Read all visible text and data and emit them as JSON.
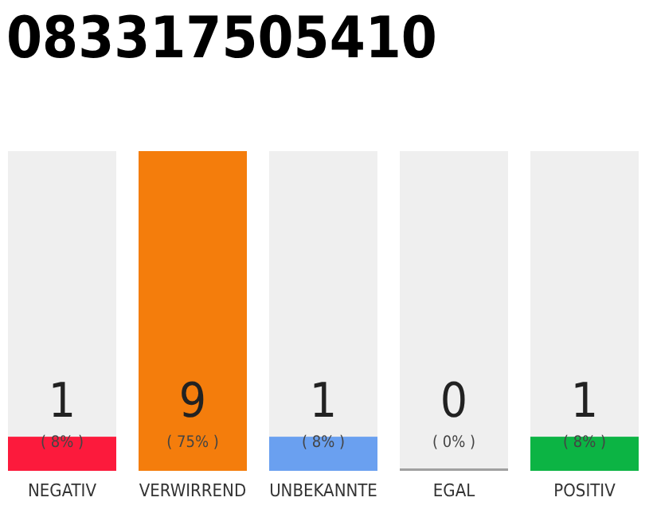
{
  "chart_data": {
    "type": "bar",
    "title": "083317505410",
    "categories": [
      "NEGATIV",
      "VERWIRREND",
      "UNBEKANNTE",
      "EGAL",
      "POSITIV"
    ],
    "values": [
      8,
      75,
      8,
      0,
      8
    ],
    "colors": [
      "#fc1a3c",
      "#f47d0c",
      "#6aa0f0",
      "#a0a0a0",
      "#0cb444"
    ],
    "value_labels": [
      "( 8% )",
      "( 75% )",
      "( 8% )",
      "( 0% )",
      "( 8% )"
    ],
    "annotations": [
      "1",
      "9",
      "1",
      "0",
      "1"
    ]
  }
}
